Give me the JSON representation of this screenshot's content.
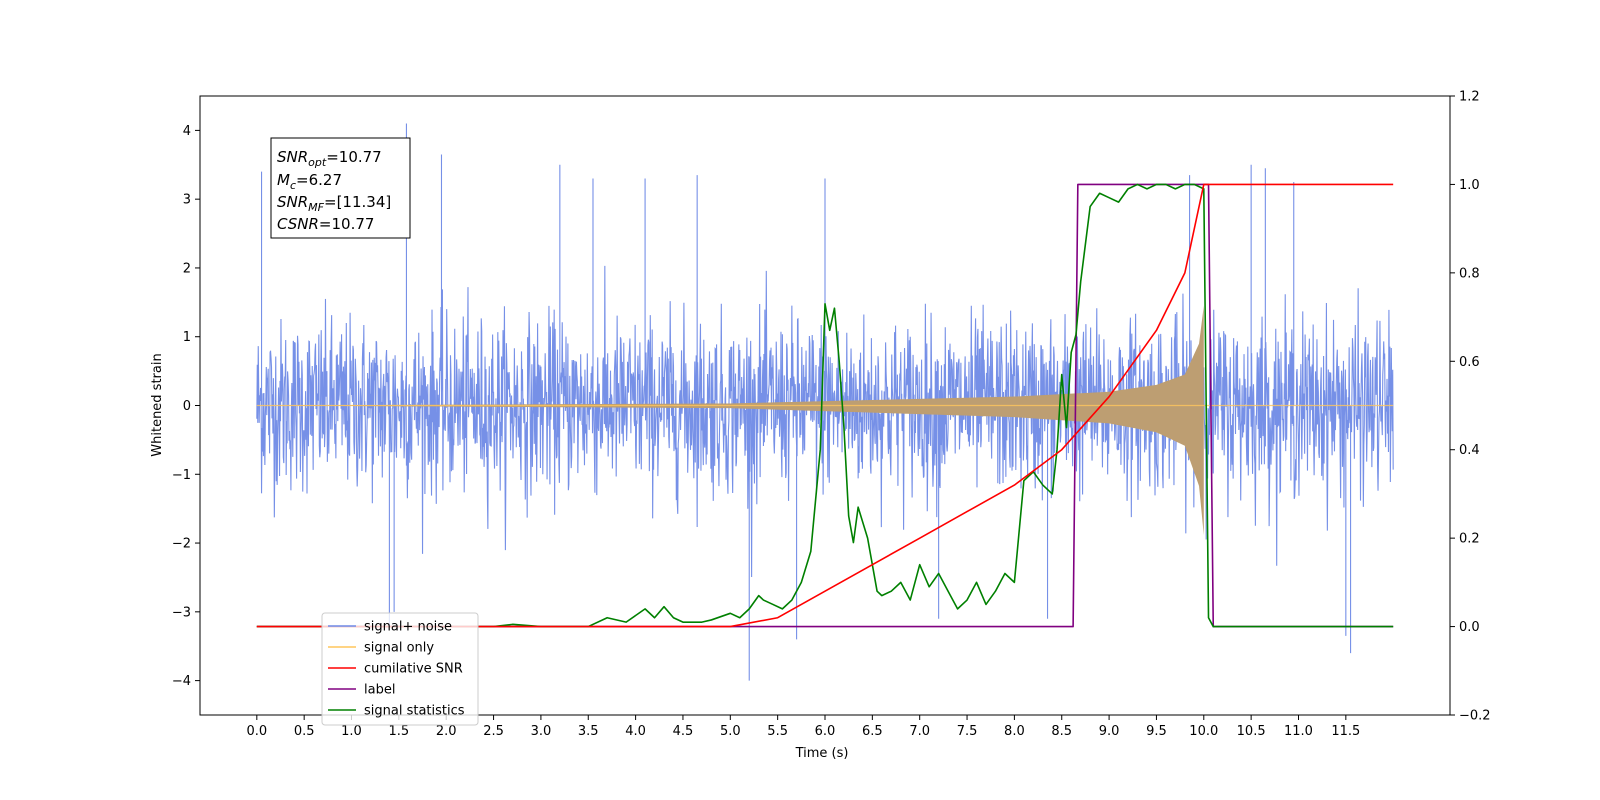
{
  "chart_data": {
    "type": "line",
    "xlabel": "Time (s)",
    "ylabel_left": "Whitened strain",
    "ylabel_right": "",
    "xlim": [
      -0.6,
      12.6
    ],
    "ylim_left": [
      -4.5,
      4.5
    ],
    "ylim_right": [
      -0.2,
      1.2
    ],
    "x_ticks": [
      "0.0",
      "0.5",
      "1.0",
      "1.5",
      "2.0",
      "2.5",
      "3.0",
      "3.5",
      "4.0",
      "4.5",
      "5.0",
      "5.5",
      "6.0",
      "6.5",
      "7.0",
      "7.5",
      "8.0",
      "8.5",
      "9.0",
      "9.5",
      "10.0",
      "10.5",
      "11.0",
      "11.5"
    ],
    "y_ticks_left": [
      "4",
      "3",
      "2",
      "1",
      "0",
      "−1",
      "−2",
      "−3",
      "−4"
    ],
    "y_ticks_right": [
      "1.2",
      "1.0",
      "0.8",
      "0.6",
      "0.4",
      "0.2",
      "0.0",
      "−0.2"
    ],
    "grid": false,
    "legend_position": "lower-left",
    "annotation": {
      "snr_opt": {
        "name": "SNR",
        "sub": "opt",
        "value": "=10.77"
      },
      "mc": {
        "name": "M",
        "sub": "c",
        "value": "=6.27"
      },
      "snr_mf": {
        "name": "SNR",
        "sub": "MF",
        "value": "=[11.34]"
      },
      "csnr": {
        "name": "CSNR",
        "sub": "",
        "value": "=10.77"
      }
    },
    "series": [
      {
        "name": "signal+ noise",
        "axis": "left",
        "color": "#6f8ae6",
        "description_values": "dense noise trace",
        "x_range": [
          0.0,
          12.0
        ],
        "envelope_typical": [
          -1.8,
          1.6
        ],
        "notable_peaks": [
          {
            "x": 1.58,
            "y": 4.1
          },
          {
            "x": 0.05,
            "y": 3.4
          },
          {
            "x": 1.95,
            "y": 3.65
          },
          {
            "x": 3.2,
            "y": 3.5
          },
          {
            "x": 3.55,
            "y": 3.3
          },
          {
            "x": 4.1,
            "y": 3.3
          },
          {
            "x": 4.65,
            "y": 3.35
          },
          {
            "x": 6.0,
            "y": 3.3
          },
          {
            "x": 9.85,
            "y": 3.35
          },
          {
            "x": 10.5,
            "y": 3.5
          },
          {
            "x": 10.65,
            "y": 3.45
          },
          {
            "x": 10.95,
            "y": 3.25
          },
          {
            "x": 5.2,
            "y": -4.0
          },
          {
            "x": 5.7,
            "y": -3.4
          },
          {
            "x": 11.55,
            "y": -3.6
          },
          {
            "x": 11.5,
            "y": -3.35
          },
          {
            "x": 7.2,
            "y": -3.1
          },
          {
            "x": 8.35,
            "y": -3.1
          },
          {
            "x": 1.4,
            "y": -3.2
          },
          {
            "x": 1.45,
            "y": -3.0
          }
        ]
      },
      {
        "name": "signal only",
        "axis": "left",
        "color": "#ffc65c",
        "chirp": {
          "start": 0.0,
          "end": 10.0,
          "amplitude_at": [
            [
              5.0,
              0.03
            ],
            [
              8.0,
              0.13
            ],
            [
              9.0,
              0.2
            ],
            [
              9.5,
              0.3
            ],
            [
              9.8,
              0.45
            ],
            [
              9.95,
              0.9
            ],
            [
              10.0,
              1.45
            ]
          ]
        }
      },
      {
        "name": "cumilative SNR",
        "axis": "right",
        "color": "#ff0000",
        "x": [
          0.0,
          5.0,
          5.5,
          6.0,
          6.5,
          7.0,
          7.5,
          8.0,
          8.5,
          9.0,
          9.5,
          9.8,
          10.0,
          10.05,
          12.0
        ],
        "values": [
          0.0,
          0.0,
          0.02,
          0.08,
          0.14,
          0.2,
          0.26,
          0.32,
          0.4,
          0.52,
          0.67,
          0.8,
          1.0,
          1.0,
          1.0
        ]
      },
      {
        "name": "label",
        "axis": "right",
        "color": "#800080",
        "x": [
          0.0,
          8.62,
          8.67,
          10.05,
          10.1,
          12.0
        ],
        "values": [
          0.0,
          0.0,
          1.0,
          1.0,
          0.0,
          0.0
        ]
      },
      {
        "name": "signal statistics",
        "axis": "right",
        "color": "#008000",
        "x": [
          0.0,
          2.5,
          2.7,
          3.0,
          3.5,
          3.7,
          3.9,
          4.1,
          4.2,
          4.3,
          4.4,
          4.5,
          4.7,
          4.8,
          5.0,
          5.1,
          5.2,
          5.3,
          5.35,
          5.45,
          5.55,
          5.65,
          5.75,
          5.85,
          5.95,
          6.0,
          6.05,
          6.1,
          6.15,
          6.2,
          6.25,
          6.3,
          6.35,
          6.45,
          6.55,
          6.6,
          6.7,
          6.8,
          6.9,
          7.0,
          7.1,
          7.2,
          7.3,
          7.4,
          7.5,
          7.6,
          7.7,
          7.8,
          7.9,
          8.0,
          8.1,
          8.2,
          8.3,
          8.4,
          8.45,
          8.5,
          8.55,
          8.6,
          8.65,
          8.7,
          8.8,
          8.9,
          9.0,
          9.1,
          9.2,
          9.3,
          9.4,
          9.5,
          9.6,
          9.7,
          9.8,
          9.9,
          10.0,
          10.05,
          10.1,
          10.2,
          12.0
        ],
        "values": [
          0.0,
          0.0,
          0.005,
          0.0,
          0.0,
          0.02,
          0.01,
          0.04,
          0.02,
          0.045,
          0.02,
          0.01,
          0.01,
          0.015,
          0.03,
          0.02,
          0.04,
          0.07,
          0.06,
          0.05,
          0.04,
          0.06,
          0.1,
          0.17,
          0.4,
          0.73,
          0.67,
          0.72,
          0.6,
          0.45,
          0.25,
          0.19,
          0.27,
          0.2,
          0.08,
          0.07,
          0.08,
          0.1,
          0.06,
          0.14,
          0.09,
          0.12,
          0.08,
          0.04,
          0.06,
          0.1,
          0.05,
          0.08,
          0.12,
          0.1,
          0.33,
          0.35,
          0.32,
          0.3,
          0.4,
          0.57,
          0.45,
          0.62,
          0.66,
          0.78,
          0.95,
          0.98,
          0.97,
          0.96,
          0.99,
          1.0,
          0.99,
          1.0,
          1.0,
          0.99,
          1.0,
          1.0,
          0.99,
          0.02,
          0.0,
          0.0,
          0.0
        ]
      }
    ]
  }
}
